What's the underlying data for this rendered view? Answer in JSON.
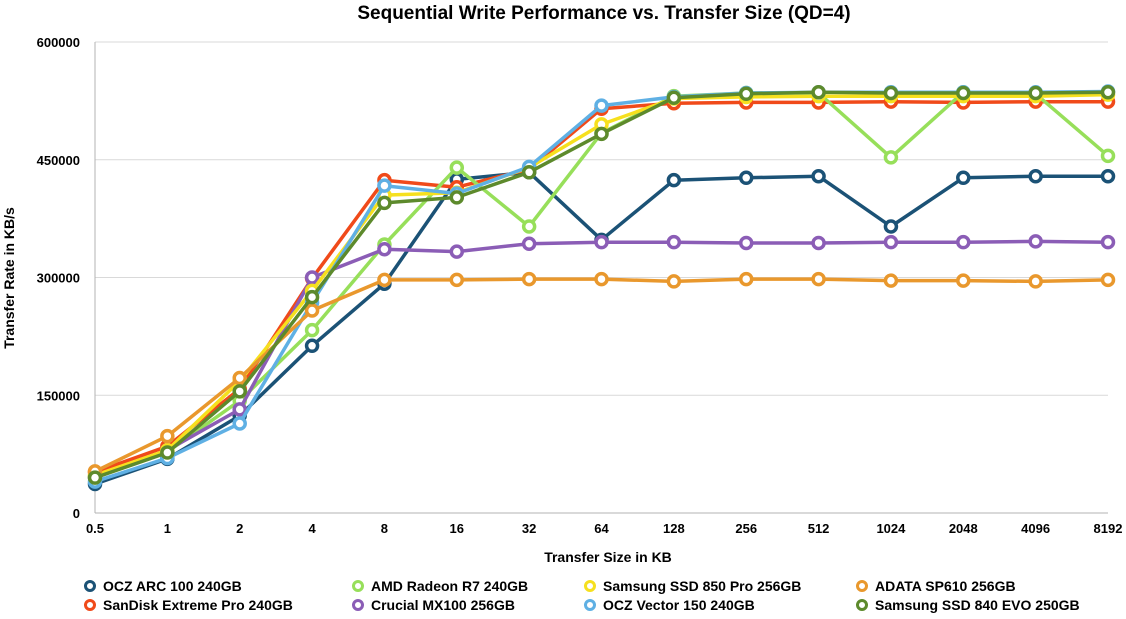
{
  "chart_data": {
    "type": "line",
    "title": "Sequential Write Performance vs. Transfer Size (QD=4)",
    "xlabel": "Transfer Size in KB",
    "ylabel": "Transfer Rate in KB/s",
    "categories": [
      "0.5",
      "1",
      "2",
      "4",
      "8",
      "16",
      "32",
      "64",
      "128",
      "256",
      "512",
      "1024",
      "2048",
      "4096",
      "8192"
    ],
    "ylim": [
      0,
      600000
    ],
    "yticks": [
      "0",
      "150000",
      "300000",
      "450000",
      "600000"
    ],
    "grid": true,
    "legend_position": "bottom",
    "series": [
      {
        "name": "OCZ ARC 100 240GB",
        "color": "#1b5276",
        "values": [
          37000,
          69000,
          124000,
          213000,
          292000,
          425000,
          434000,
          348000,
          424000,
          427000,
          429000,
          365000,
          427000,
          429000,
          429000
        ]
      },
      {
        "name": "SanDisk Extreme Pro 240GB",
        "color": "#f04a1a",
        "values": [
          52000,
          85000,
          158000,
          299000,
          424000,
          415000,
          438000,
          515000,
          522000,
          523000,
          523000,
          524000,
          523000,
          524000,
          524000
        ]
      },
      {
        "name": "AMD Radeon R7 240GB",
        "color": "#97df5a",
        "values": [
          47000,
          78000,
          143000,
          233000,
          342000,
          440000,
          365000,
          484000,
          531000,
          535000,
          535000,
          453000,
          536000,
          534000,
          455000
        ]
      },
      {
        "name": "Crucial MX100 256GB",
        "color": "#8b5db6",
        "values": [
          45000,
          80000,
          132000,
          300000,
          336000,
          333000,
          343000,
          345000,
          345000,
          344000,
          344000,
          345000,
          345000,
          346000,
          345000
        ]
      },
      {
        "name": "Samsung SSD 850 Pro 256GB",
        "color": "#f6e01e",
        "values": [
          48000,
          80000,
          168000,
          283000,
          405000,
          408000,
          440000,
          495000,
          528000,
          530000,
          531000,
          531000,
          531000,
          531000,
          533000
        ]
      },
      {
        "name": "OCZ Vector 150 240GB",
        "color": "#5fb0e4",
        "values": [
          40000,
          70000,
          114000,
          268000,
          417000,
          407000,
          441000,
          519000,
          530000,
          535000,
          536000,
          536000,
          536000,
          536000,
          537000
        ]
      },
      {
        "name": "ADATA SP610 256GB",
        "color": "#e9982d",
        "values": [
          53000,
          98000,
          172000,
          258000,
          297000,
          297000,
          298000,
          298000,
          295000,
          298000,
          298000,
          296000,
          296000,
          295000,
          297000
        ]
      },
      {
        "name": "Samsung SSD 840 EVO 250GB",
        "color": "#5d8a2c",
        "values": [
          45000,
          77000,
          155000,
          275000,
          395000,
          402000,
          434000,
          483000,
          529000,
          534000,
          536000,
          535000,
          535000,
          535000,
          536000
        ]
      }
    ],
    "legend_order": [
      "OCZ ARC 100 240GB",
      "AMD Radeon R7 240GB",
      "Samsung SSD 850 Pro 256GB",
      "ADATA SP610 256GB",
      "SanDisk Extreme Pro 240GB",
      "Crucial MX100 256GB",
      "OCZ Vector 150 240GB",
      "Samsung SSD 840 EVO 250GB"
    ]
  }
}
